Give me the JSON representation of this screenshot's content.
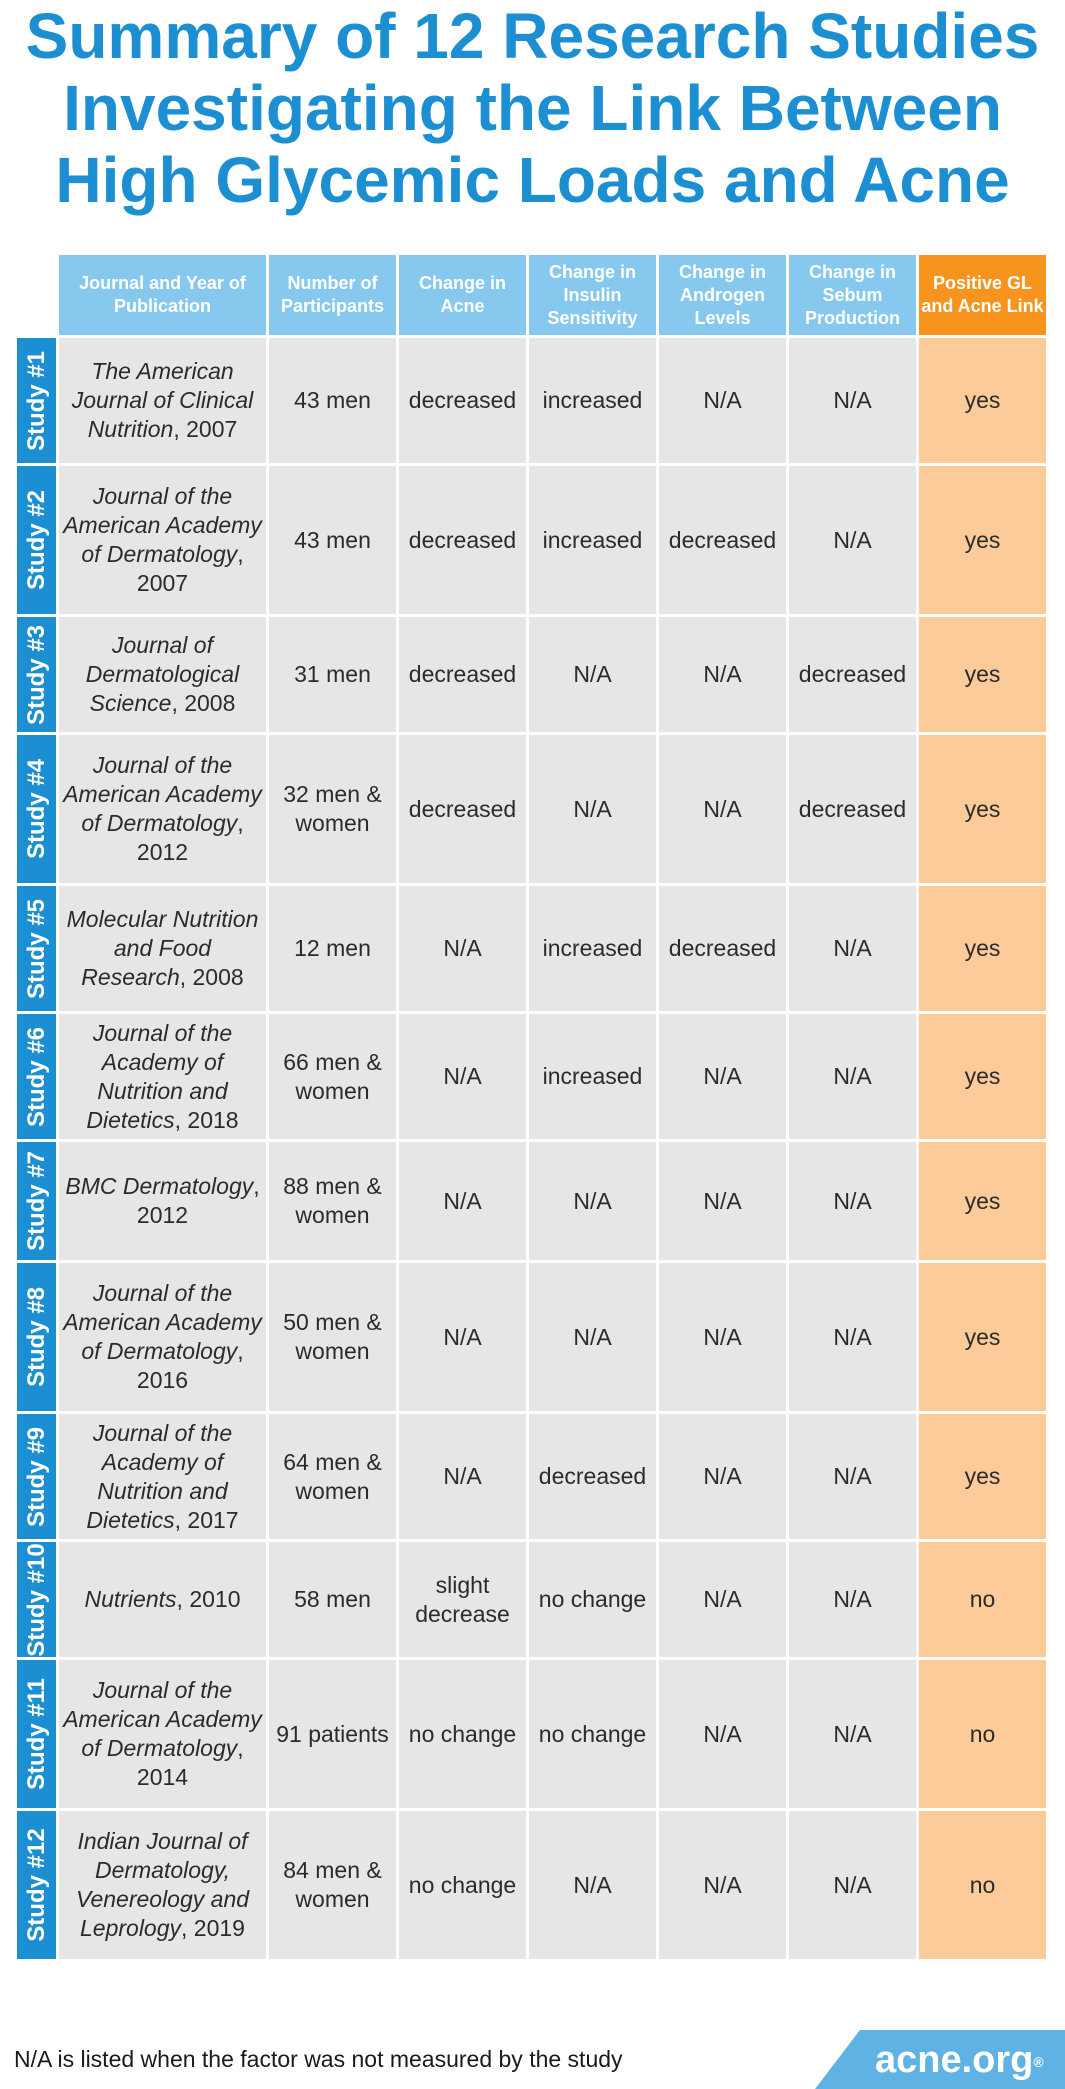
{
  "title": {
    "line1": "Summary of 12 Research Studies",
    "line2": "Investigating the Link Between",
    "line3": "High Glycemic Loads and Acne"
  },
  "headers": {
    "journal": "Journal and Year of Publication",
    "participants": "Number of Participants",
    "acne": "Change in Acne",
    "insulin": "Change in Insulin Sensitivity",
    "androgen": "Change in Androgen Levels",
    "sebum": "Change in Sebum Production",
    "link": "Positive GL and Acne Link"
  },
  "studies": [
    {
      "label": "Study #1",
      "journal": "The American Journal of Clinical Nutrition",
      "year": ", 2007",
      "participants": "43 men",
      "acne": "decreased",
      "insulin": "increased",
      "androgen": "N/A",
      "sebum": "N/A",
      "link": "yes"
    },
    {
      "label": "Study #2",
      "journal": "Journal of the American Academy of Dermatology",
      "year": ", 2007",
      "participants": "43 men",
      "acne": "decreased",
      "insulin": "increased",
      "androgen": "decreased",
      "sebum": "N/A",
      "link": "yes"
    },
    {
      "label": "Study #3",
      "journal": "Journal of Dermatological Science",
      "year": ", 2008",
      "participants": "31 men",
      "acne": "decreased",
      "insulin": "N/A",
      "androgen": "N/A",
      "sebum": "decreased",
      "link": "yes"
    },
    {
      "label": "Study #4",
      "journal": "Journal of the American Academy of Dermatology",
      "year": ", 2012",
      "participants": "32 men & women",
      "acne": "decreased",
      "insulin": "N/A",
      "androgen": "N/A",
      "sebum": "decreased",
      "link": "yes"
    },
    {
      "label": "Study #5",
      "journal": "Molecular Nutrition and Food Research",
      "year": ", 2008",
      "participants": "12 men",
      "acne": "N/A",
      "insulin": "increased",
      "androgen": "decreased",
      "sebum": "N/A",
      "link": "yes"
    },
    {
      "label": "Study #6",
      "journal": "Journal of the Academy of Nutrition and Dietetics",
      "year": ", 2018",
      "participants": "66 men & women",
      "acne": "N/A",
      "insulin": "increased",
      "androgen": "N/A",
      "sebum": "N/A",
      "link": "yes"
    },
    {
      "label": "Study #7",
      "journal": "BMC Dermatology",
      "year": ", 2012",
      "participants": "88 men & women",
      "acne": "N/A",
      "insulin": "N/A",
      "androgen": "N/A",
      "sebum": "N/A",
      "link": "yes"
    },
    {
      "label": "Study #8",
      "journal": "Journal of the American Academy of Dermatology",
      "year": ", 2016",
      "participants": "50 men & women",
      "acne": "N/A",
      "insulin": "N/A",
      "androgen": "N/A",
      "sebum": "N/A",
      "link": "yes"
    },
    {
      "label": "Study #9",
      "journal": "Journal of the Academy of Nutrition and Dietetics",
      "year": ", 2017",
      "participants": "64 men & women",
      "acne": "N/A",
      "insulin": "decreased",
      "androgen": "N/A",
      "sebum": "N/A",
      "link": "yes"
    },
    {
      "label": "Study #10",
      "journal": "Nutrients",
      "year": ", 2010",
      "participants": "58 men",
      "acne": "slight decrease",
      "insulin": "no change",
      "androgen": "N/A",
      "sebum": "N/A",
      "link": "no"
    },
    {
      "label": "Study #11",
      "journal": "Journal of the American Academy of Dermatology",
      "year": ", 2014",
      "participants": "91 patients",
      "acne": "no change",
      "insulin": "no change",
      "androgen": "N/A",
      "sebum": "N/A",
      "link": "no"
    },
    {
      "label": "Study #12",
      "journal": "Indian Journal of Dermatology, Venereology and Leprology",
      "year": ", 2019",
      "participants": "84 men & women",
      "acne": "no change",
      "insulin": "N/A",
      "androgen": "N/A",
      "sebum": "N/A",
      "link": "no"
    }
  ],
  "footnote": "N/A is listed when the factor was not measured by the study",
  "logo": {
    "text": "acne.org",
    "mark": "®"
  },
  "colors": {
    "brand_blue": "#1b8fd2",
    "header_blue": "#86c8ee",
    "accent_orange": "#f7941d",
    "light_orange": "#fdcb99",
    "cell_gray": "#e6e6e6"
  }
}
